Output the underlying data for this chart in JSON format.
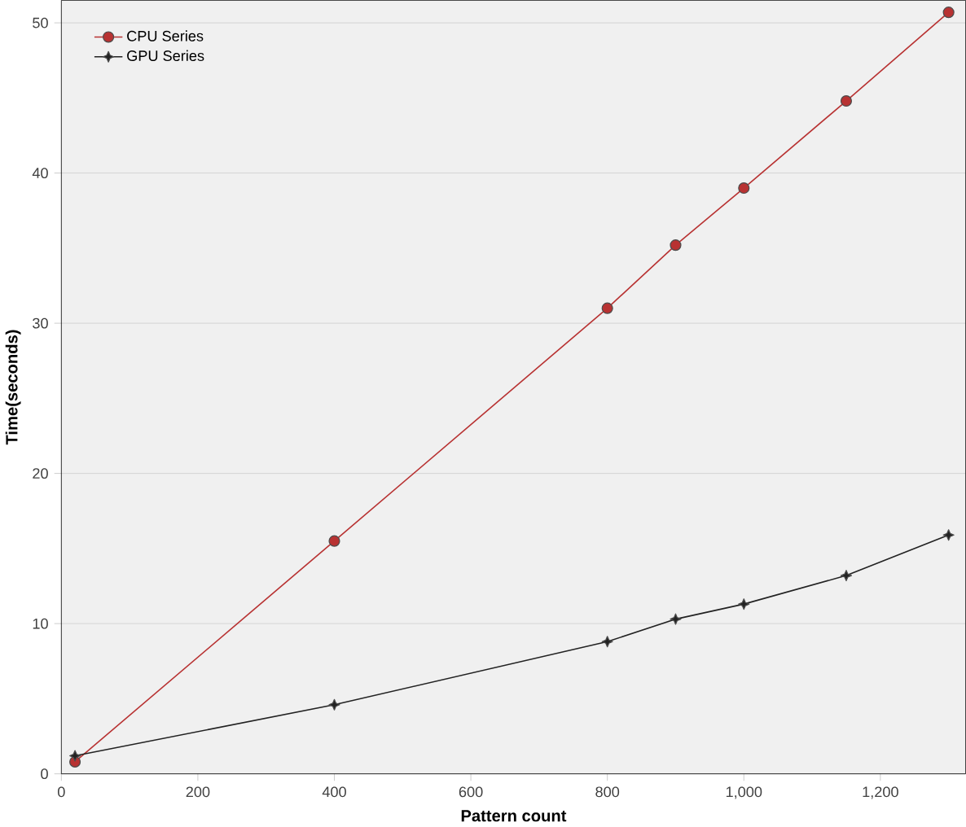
{
  "chart_data": {
    "type": "line",
    "xlabel": "Pattern count",
    "ylabel": "Time(seconds)",
    "xlim": [
      0,
      1325
    ],
    "ylim": [
      0,
      51.5
    ],
    "xticks": [
      0,
      200,
      400,
      600,
      800,
      {
        "value": 1000,
        "label": "1,000"
      },
      {
        "value": 1200,
        "label": "1,200"
      }
    ],
    "yticks": [
      0,
      10,
      20,
      30,
      40,
      50
    ],
    "grid": "y",
    "legend": "top left",
    "series": [
      {
        "name": "CPU Series",
        "color": "#b83232",
        "marker": "circle",
        "x": [
          20,
          400,
          800,
          900,
          1000,
          1150,
          1300
        ],
        "values": [
          0.8,
          15.5,
          31,
          35.2,
          39,
          44.8,
          50.7
        ]
      },
      {
        "name": "GPU Series",
        "color": "#222222",
        "marker": "star",
        "x": [
          20,
          400,
          800,
          900,
          1000,
          1150,
          1300
        ],
        "values": [
          1.2,
          4.6,
          8.8,
          10.3,
          11.3,
          13.2,
          15.9
        ]
      }
    ]
  }
}
